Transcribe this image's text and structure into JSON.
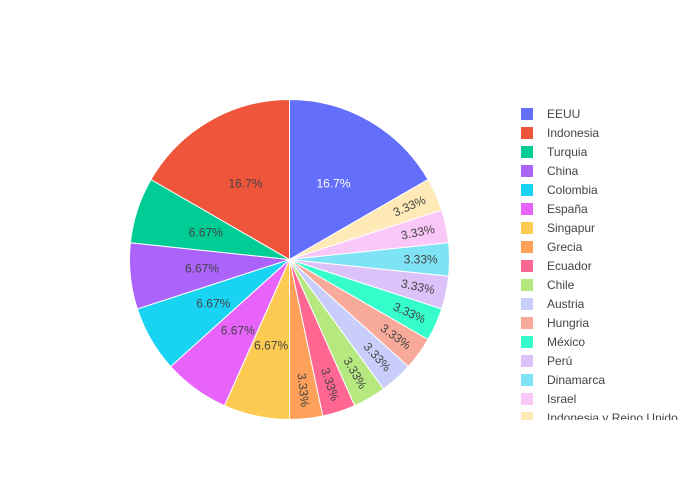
{
  "chart_data": {
    "type": "pie",
    "direction": "clockwise",
    "start_angle_deg": 0,
    "legend_position": "right",
    "legend_items": [
      "EEUU",
      "Indonesia",
      "Turquia",
      "China",
      "Colombia",
      "España",
      "Singapur",
      "Grecia",
      "Ecuador",
      "Chile",
      "Austria",
      "Hungria",
      "México",
      "Perú",
      "Dinamarca",
      "Israel",
      "Indonesia y Reino Unido"
    ],
    "slices_clockwise": [
      {
        "label": "EEUU",
        "value": 5,
        "percent_label": "16.7%",
        "color": "#636efa"
      },
      {
        "label": "Indonesia y Reino Unido",
        "value": 1,
        "percent_label": "3.33%",
        "color": "#fee9b7"
      },
      {
        "label": "Israel",
        "value": 1,
        "percent_label": "3.33%",
        "color": "#f9c8f8"
      },
      {
        "label": "Dinamarca",
        "value": 1,
        "percent_label": "3.33%",
        "color": "#7fe3f6"
      },
      {
        "label": "Perú",
        "value": 1,
        "percent_label": "3.33%",
        "color": "#dcc2f8"
      },
      {
        "label": "México",
        "value": 1,
        "percent_label": "3.33%",
        "color": "#35fdcc"
      },
      {
        "label": "Hungria",
        "value": 1,
        "percent_label": "3.33%",
        "color": "#f7a99a"
      },
      {
        "label": "Austria",
        "value": 1,
        "percent_label": "3.33%",
        "color": "#c9cdf9"
      },
      {
        "label": "Chile",
        "value": 1,
        "percent_label": "3.33%",
        "color": "#b6e880"
      },
      {
        "label": "Ecuador",
        "value": 1,
        "percent_label": "3.33%",
        "color": "#ff6692"
      },
      {
        "label": "Grecia",
        "value": 1,
        "percent_label": "3.33%",
        "color": "#ffa15a"
      },
      {
        "label": "Singapur",
        "value": 2,
        "percent_label": "6.67%",
        "color": "#fecb52"
      },
      {
        "label": "España",
        "value": 2,
        "percent_label": "6.67%",
        "color": "#e763fa"
      },
      {
        "label": "Colombia",
        "value": 2,
        "percent_label": "6.67%",
        "color": "#19d3f3"
      },
      {
        "label": "China",
        "value": 2,
        "percent_label": "6.67%",
        "color": "#ab63fa"
      },
      {
        "label": "Turquia",
        "value": 2,
        "percent_label": "6.67%",
        "color": "#00cc96"
      },
      {
        "label": "Indonesia",
        "value": 5,
        "percent_label": "16.7%",
        "color": "#ef553b"
      }
    ]
  }
}
